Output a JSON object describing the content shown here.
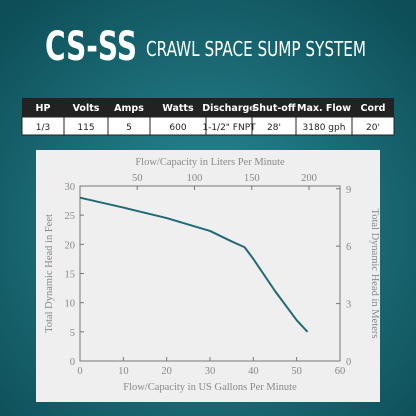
{
  "header": {
    "title": "CS-SS",
    "subtitle": "CRAWL SPACE SUMP SYSTEM"
  },
  "table": {
    "columns": [
      "HP",
      "Volts",
      "Amps",
      "Watts",
      "Discharge",
      "Shut-off",
      "Max. Flow",
      "Cord"
    ],
    "rows": [
      [
        "1/3",
        "115",
        "5",
        "600",
        "1-1/2\" FNPT",
        "28'",
        "3180 gph",
        "20'"
      ]
    ]
  },
  "chart_data": {
    "type": "line",
    "x_label": "Flow/Capacity in US Gallons Per Minute",
    "x2_label": "Flow/Capacity in Liters Per Minute",
    "y_label": "Total Dynamic Head in Feet",
    "y2_label": "Total Dynamic Head in Meters",
    "xlim": [
      0,
      60
    ],
    "xticks": [
      0,
      10,
      20,
      30,
      40,
      50,
      60
    ],
    "x2lim": [
      0,
      227.1
    ],
    "x2ticks": [
      50,
      100,
      150,
      200
    ],
    "ylim": [
      0,
      30
    ],
    "yticks": [
      0,
      5,
      10,
      15,
      20,
      25,
      30
    ],
    "y2lim": [
      0,
      9.144
    ],
    "y2ticks": [
      0,
      3,
      6,
      9
    ],
    "series": [
      {
        "color": "#1f6b74",
        "x": [
          0,
          10,
          20,
          30,
          35,
          38,
          40,
          45,
          50,
          52.5
        ],
        "values": [
          28,
          26.3,
          24.5,
          22.3,
          20.5,
          19.5,
          17.5,
          12,
          7,
          5
        ]
      }
    ]
  }
}
